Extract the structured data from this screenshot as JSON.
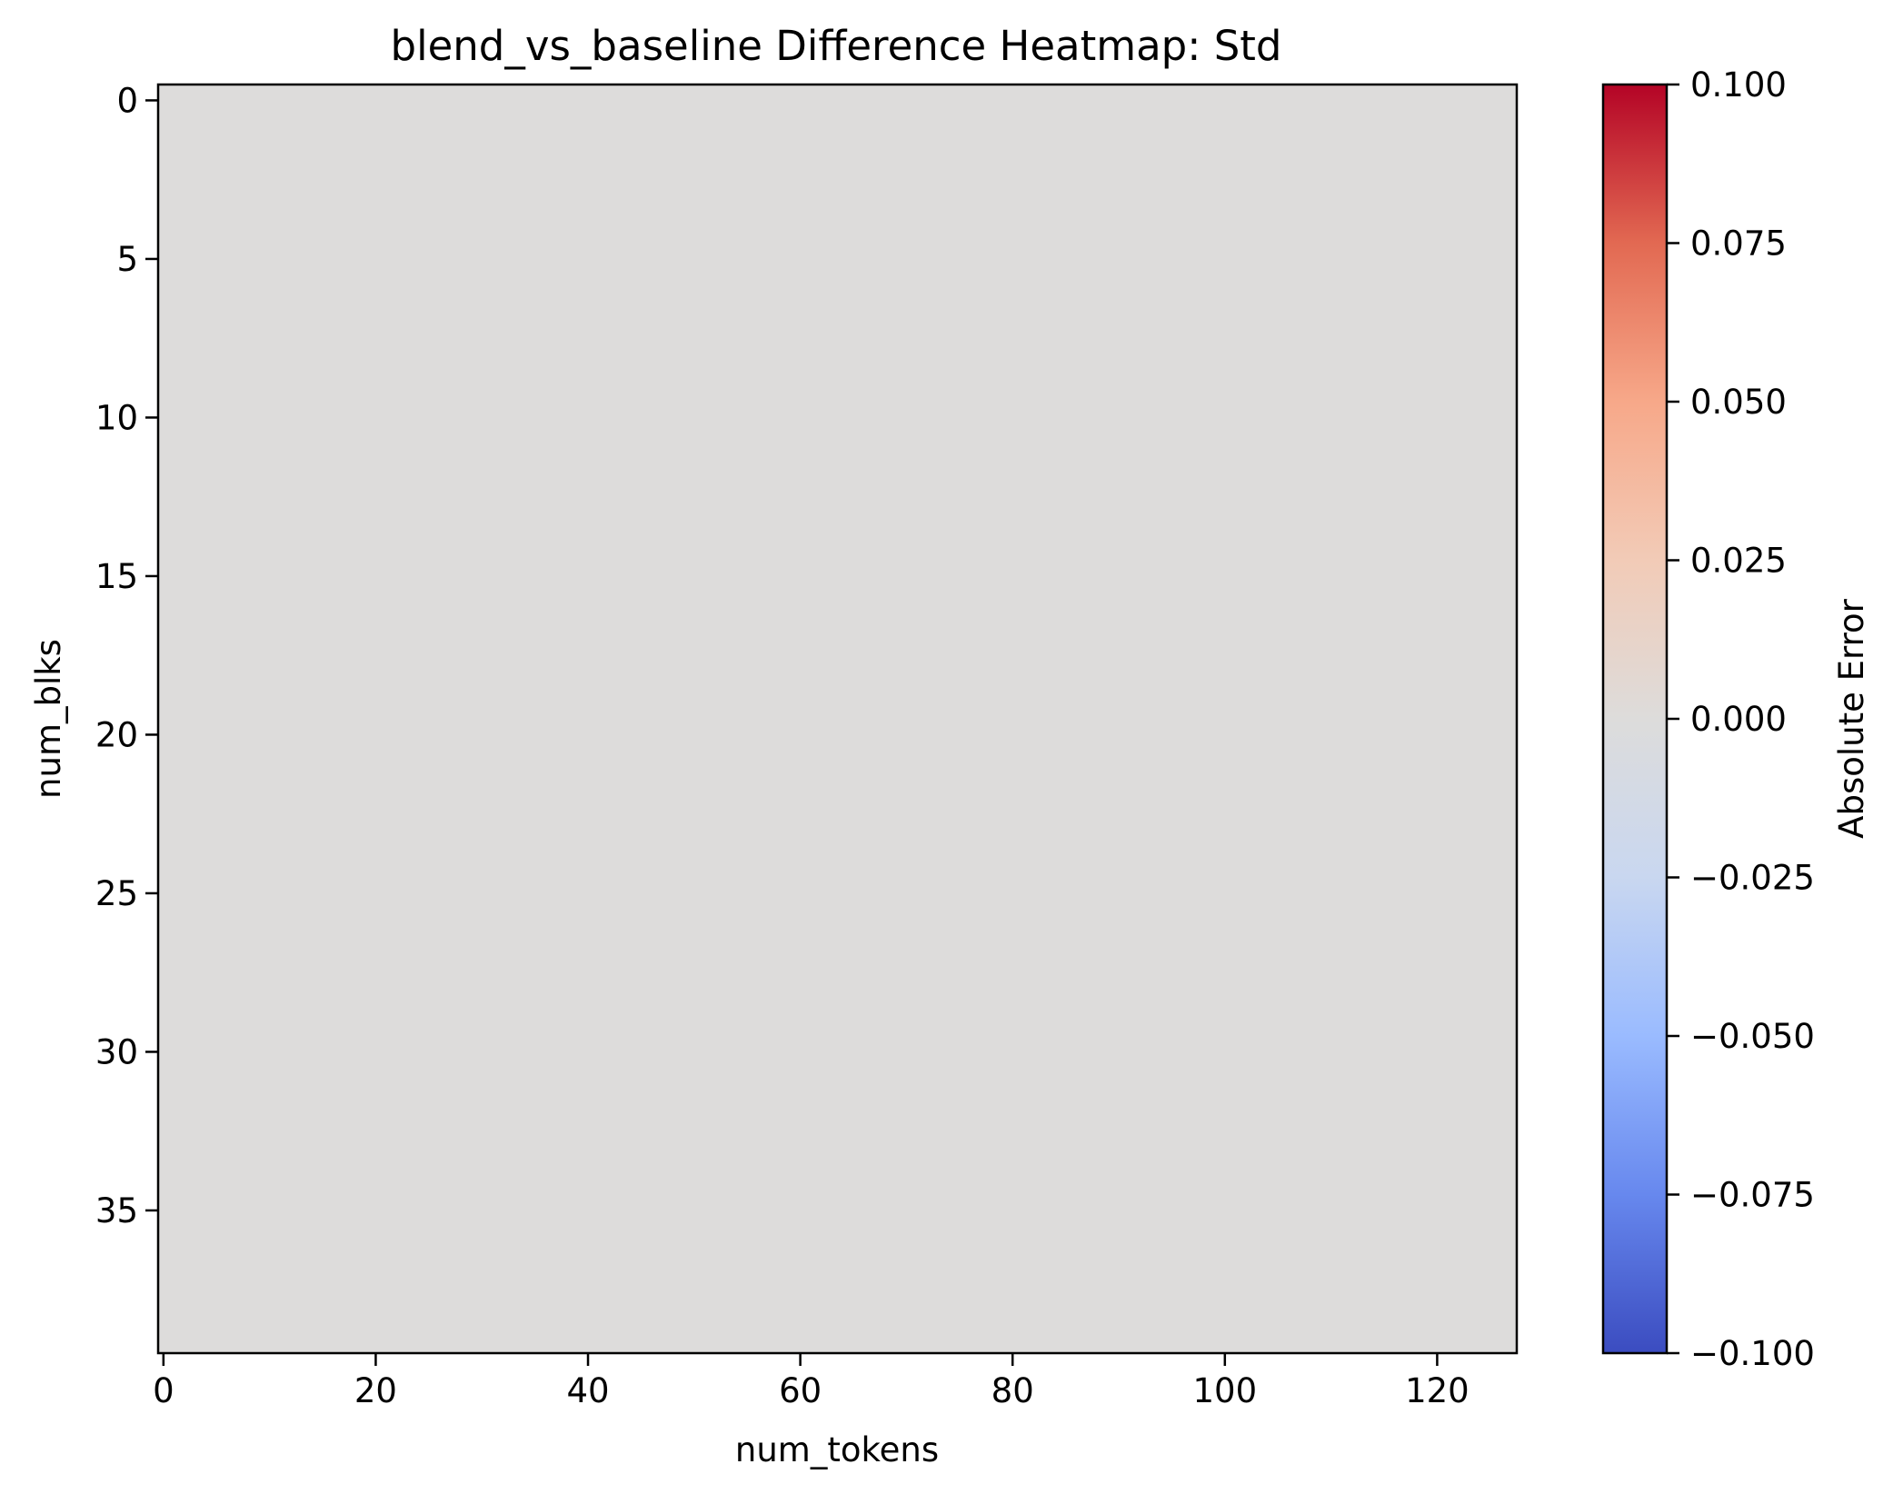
{
  "chart_data": {
    "type": "heatmap",
    "title": "blend_vs_baseline Difference Heatmap: Std",
    "xlabel": "num_tokens",
    "ylabel": "num_blks",
    "x_range": [
      -0.5,
      127.5
    ],
    "y_range": [
      39.5,
      -0.5
    ],
    "x_ticks": [
      0,
      20,
      40,
      60,
      80,
      100,
      120
    ],
    "y_ticks": [
      0,
      5,
      10,
      15,
      20,
      25,
      30,
      35
    ],
    "rows": 40,
    "cols": 128,
    "uniform_value": 0.0,
    "colormap": "coolwarm",
    "fill_color": "#dddcdb",
    "colorbar": {
      "label": "Absolute Error",
      "range": [
        -0.1,
        0.1
      ],
      "ticks": [
        -0.1,
        -0.075,
        -0.05,
        -0.025,
        0.0,
        0.025,
        0.05,
        0.075,
        0.1
      ],
      "tick_labels": [
        "−0.100",
        "−0.075",
        "−0.050",
        "−0.025",
        "0.000",
        "0.025",
        "0.050",
        "0.075",
        "0.100"
      ],
      "gradient": [
        "#3b4cc0",
        "#6788ee",
        "#9abbff",
        "#c9d7f0",
        "#dddcdb",
        "#f2cbb7",
        "#f7a889",
        "#e26952",
        "#b40426"
      ]
    },
    "grid": false
  }
}
